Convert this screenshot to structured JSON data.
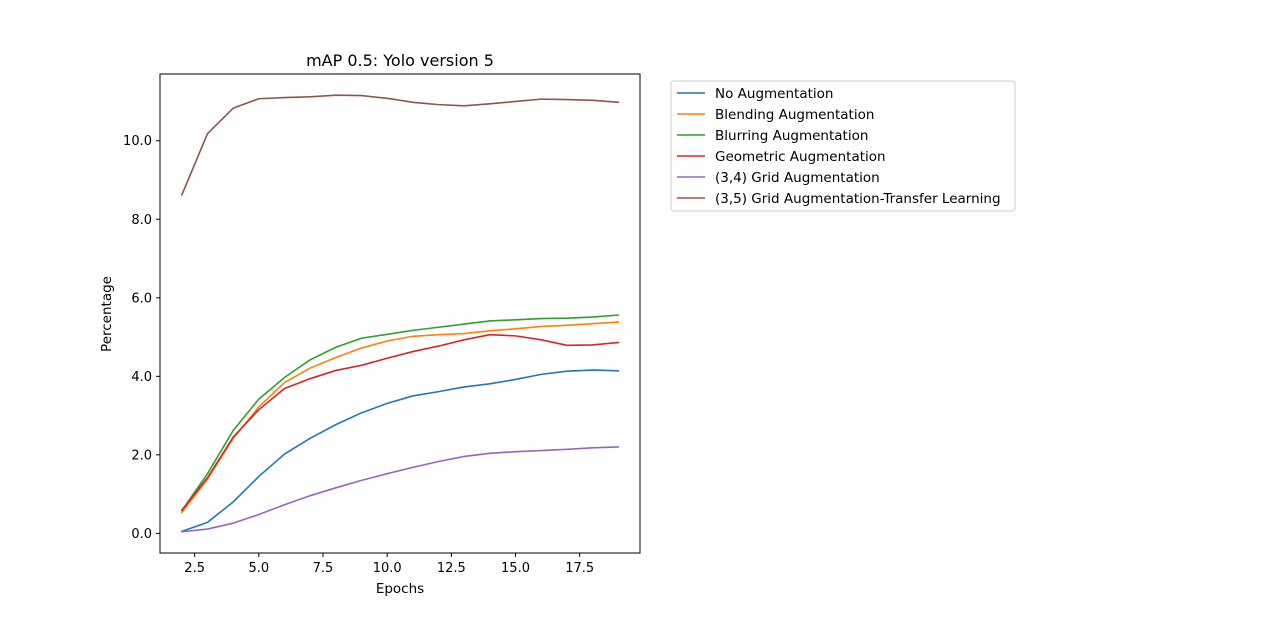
{
  "chart_data": {
    "type": "line",
    "title": "mAP 0.5: Yolo version 5",
    "xlabel": "Epochs",
    "ylabel": "Percentage",
    "xlim": [
      1.15,
      19.85
    ],
    "ylim": [
      -0.5,
      11.7
    ],
    "xticks": [
      2.5,
      5.0,
      7.5,
      10.0,
      12.5,
      15.0,
      17.5
    ],
    "xtick_labels": [
      "2.5",
      "5.0",
      "7.5",
      "10.0",
      "12.5",
      "15.0",
      "17.5"
    ],
    "yticks": [
      0,
      2,
      4,
      6,
      8,
      10
    ],
    "ytick_labels": [
      "0.0",
      "2.0",
      "4.0",
      "6.0",
      "8.0",
      "10.0"
    ],
    "grid": false,
    "legend_placement": "outside upper right",
    "x": [
      2,
      3,
      4,
      5,
      6,
      7,
      8,
      9,
      10,
      11,
      12,
      13,
      14,
      15,
      16,
      17,
      18,
      19
    ],
    "series": [
      {
        "name": "No Augmentation",
        "color": "#1f77b4",
        "values": [
          0.05,
          0.28,
          0.8,
          1.45,
          2.02,
          2.42,
          2.77,
          3.07,
          3.31,
          3.5,
          3.61,
          3.73,
          3.81,
          3.92,
          4.05,
          4.13,
          4.16,
          4.14
        ]
      },
      {
        "name": "Blending Augmentation",
        "color": "#ff7f0e",
        "values": [
          0.53,
          1.38,
          2.42,
          3.22,
          3.84,
          4.21,
          4.48,
          4.72,
          4.9,
          5.02,
          5.06,
          5.09,
          5.16,
          5.21,
          5.27,
          5.3,
          5.34,
          5.38
        ]
      },
      {
        "name": "Blurring Augmentation",
        "color": "#2ca02c",
        "values": [
          0.58,
          1.52,
          2.62,
          3.42,
          3.97,
          4.42,
          4.74,
          4.97,
          5.07,
          5.17,
          5.25,
          5.33,
          5.41,
          5.44,
          5.47,
          5.48,
          5.51,
          5.56
        ]
      },
      {
        "name": "Geometric Augmentation",
        "color": "#d62728",
        "values": [
          0.59,
          1.42,
          2.45,
          3.15,
          3.69,
          3.94,
          4.15,
          4.28,
          4.46,
          4.63,
          4.77,
          4.93,
          5.06,
          5.03,
          4.93,
          4.79,
          4.8,
          4.86
        ]
      },
      {
        "name": "(3,4) Grid Augmentation",
        "color": "#9467bd",
        "values": [
          0.04,
          0.11,
          0.26,
          0.48,
          0.73,
          0.96,
          1.16,
          1.35,
          1.52,
          1.68,
          1.83,
          1.96,
          2.04,
          2.08,
          2.11,
          2.14,
          2.18,
          2.2
        ]
      },
      {
        "name": "(3,5) Grid Augmentation-Transfer Learning",
        "color": "#8c564b",
        "values": [
          8.62,
          10.18,
          10.83,
          11.07,
          11.1,
          11.12,
          11.16,
          11.15,
          11.08,
          10.98,
          10.92,
          10.89,
          10.94,
          11.0,
          11.06,
          11.05,
          11.03,
          10.98
        ]
      }
    ]
  }
}
